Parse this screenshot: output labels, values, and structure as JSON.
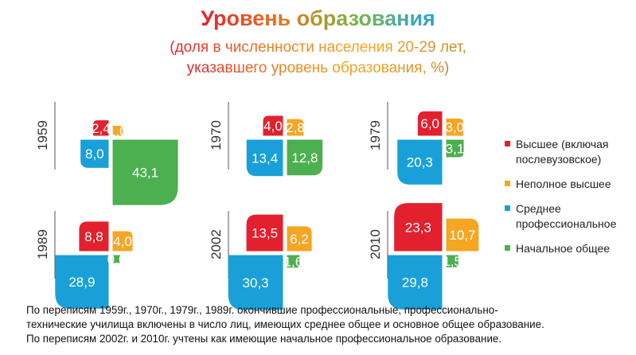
{
  "chart_data": {
    "type": "area",
    "title": "Уровень образования",
    "subtitle_lines": [
      "(доля в численности населения 20-29 лет,",
      "указавшего уровень образования, %)"
    ],
    "series": [
      {
        "name": "Высшее (включая послевузовское)",
        "color": "#e3202e"
      },
      {
        "name": "Неполное высшее",
        "color": "#f5a623"
      },
      {
        "name": "Среднее профессиональное",
        "color": "#1aa0d8"
      },
      {
        "name": "Начальное общее",
        "color": "#4caf50"
      }
    ],
    "categories": [
      "1959",
      "1970",
      "1979",
      "1989",
      "2002",
      "2010"
    ],
    "values": [
      [
        2.4,
        1.0,
        8.0,
        43.1
      ],
      [
        4.0,
        2.8,
        13.4,
        12.8
      ],
      [
        6.0,
        3.0,
        20.3,
        3.1
      ],
      [
        8.8,
        4.0,
        28.9,
        0.6
      ],
      [
        13.5,
        6.2,
        30.3,
        1.6
      ],
      [
        23.3,
        10.7,
        29.8,
        1.5
      ]
    ],
    "value_labels": [
      [
        "2,4",
        "1,0",
        "8,0",
        "43,1"
      ],
      [
        "4,0",
        "2,8",
        "13,4",
        "12,8"
      ],
      [
        "6,0",
        "3,0",
        "20,3",
        "3,1"
      ],
      [
        "8,8",
        "4,0",
        "28,9",
        "0,6"
      ],
      [
        "13,5",
        "6,2",
        "30,3",
        "1,6"
      ],
      [
        "23,3",
        "10,7",
        "29,8",
        "1,5"
      ]
    ]
  },
  "legend": [
    "Высшее (включая послевузовское)",
    "Неполное высшее",
    "Среднее профессиональное",
    "Начальное общее"
  ],
  "footnote_lines": [
    "По переписям 1959г., 1970г., 1979г., 1989г. окончившие профессиональные, профессионально-",
    "технические училища  включены в число лиц, имеющих  среднее общее и основное общее образование.",
    "По переписям 2002г. и 2010г. учтены как имеющие  начальное профессиональное образование."
  ],
  "title_gradient": [
    "#e3202e",
    "#e8741c",
    "#7ab648",
    "#29a3d9"
  ],
  "subtitle_gradient": [
    "#e3202e",
    "#e67e22",
    "#f5a623",
    "#c98b2a"
  ]
}
